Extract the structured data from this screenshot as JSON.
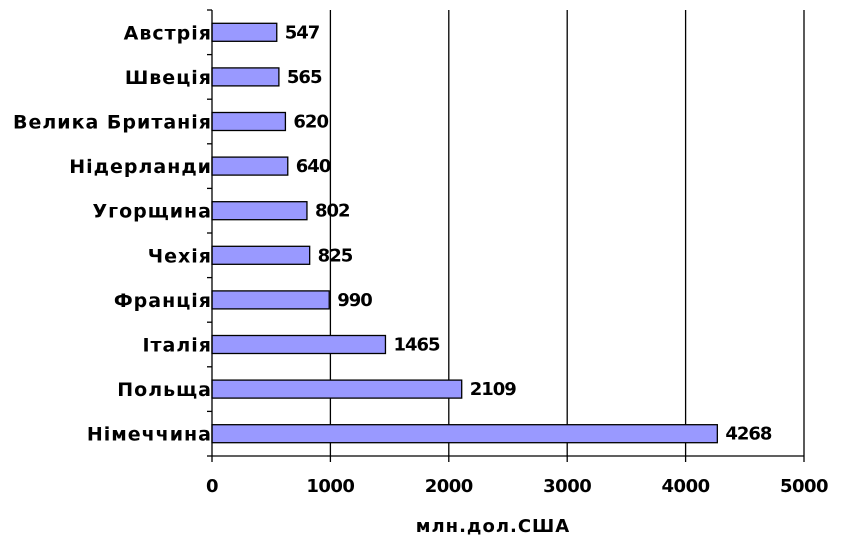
{
  "chart_data": {
    "type": "bar",
    "orientation": "horizontal",
    "categories": [
      "Німеччина",
      "Польща",
      "Італія",
      "Франція",
      "Чехія",
      "Угорщина",
      "Нідерланди",
      "Велика Британія",
      "Швеція",
      "Австрія"
    ],
    "values": [
      4268,
      2109,
      1465,
      990,
      825,
      802,
      640,
      620,
      565,
      547
    ],
    "xlabel": "млн.дол.США",
    "ylabel": "",
    "xlim": [
      0,
      5000
    ],
    "xticks": [
      0,
      1000,
      2000,
      3000,
      4000,
      5000
    ],
    "grid": "vertical major gridlines",
    "legend": "none",
    "bar_color": "#9999ff",
    "bar_edge_color": "#000000"
  }
}
